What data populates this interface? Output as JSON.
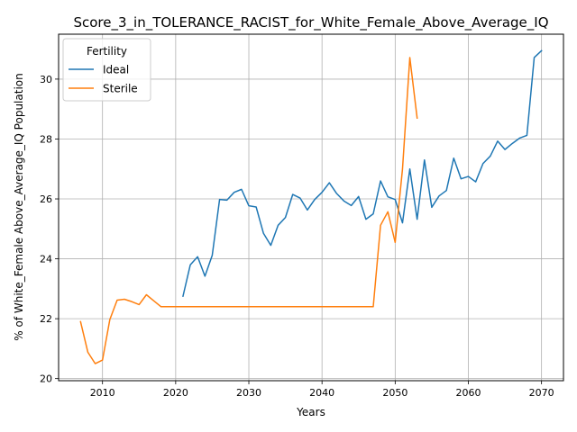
{
  "chart_data": {
    "type": "line",
    "title": "Score_3_in_TOLERANCE_RACIST_for_White_Female_Above_Average_IQ",
    "xlabel": "Years",
    "ylabel": "% of White_Female Above_Average_IQ Population",
    "xlim": [
      2004,
      2073
    ],
    "ylim": [
      19.93,
      31.5
    ],
    "xticks": [
      2010,
      2020,
      2030,
      2040,
      2050,
      2060,
      2070
    ],
    "yticks": [
      20,
      22,
      24,
      26,
      28,
      30
    ],
    "grid": true,
    "legend": {
      "title": "Fertility",
      "position": "upper-left"
    },
    "series": [
      {
        "name": "Ideal",
        "color": "#1f77b4",
        "x": [
          2021,
          2022,
          2023,
          2024,
          2025,
          2026,
          2027,
          2028,
          2029,
          2030,
          2031,
          2032,
          2033,
          2034,
          2035,
          2036,
          2037,
          2038,
          2039,
          2040,
          2041,
          2042,
          2043,
          2044,
          2045,
          2046,
          2047,
          2048,
          2049,
          2050,
          2051,
          2052,
          2053,
          2054,
          2055,
          2056,
          2057,
          2058,
          2059,
          2060,
          2061,
          2062,
          2063,
          2064,
          2065,
          2066,
          2067,
          2068,
          2069,
          2070
        ],
        "y": [
          22.75,
          23.8,
          24.07,
          23.42,
          24.12,
          25.98,
          25.96,
          26.22,
          26.32,
          25.77,
          25.73,
          24.85,
          24.45,
          25.12,
          25.38,
          26.15,
          26.03,
          25.63,
          25.98,
          26.22,
          26.54,
          26.18,
          25.93,
          25.78,
          26.08,
          25.32,
          25.5,
          26.6,
          26.07,
          25.98,
          25.2,
          27.0,
          25.32,
          27.3,
          25.72,
          26.1,
          26.28,
          27.36,
          26.67,
          26.75,
          26.57,
          27.18,
          27.43,
          27.93,
          27.65,
          27.85,
          28.03,
          28.12,
          30.72,
          30.95
        ]
      },
      {
        "name": "Sterile",
        "color": "#ff7f0e",
        "x": [
          2007,
          2008,
          2009,
          2010,
          2011,
          2012,
          2013,
          2014,
          2015,
          2016,
          2017,
          2018,
          2019,
          2020,
          2021,
          2022,
          2023,
          2024,
          2025,
          2026,
          2027,
          2028,
          2029,
          2030,
          2031,
          2032,
          2033,
          2034,
          2035,
          2036,
          2037,
          2038,
          2039,
          2040,
          2041,
          2042,
          2043,
          2044,
          2045,
          2046,
          2047,
          2048,
          2049,
          2050,
          2051,
          2052,
          2053
        ],
        "y": [
          21.9,
          20.88,
          20.5,
          20.62,
          21.97,
          22.62,
          22.65,
          22.57,
          22.47,
          22.8,
          22.6,
          22.4,
          22.4,
          22.4,
          22.4,
          22.4,
          22.4,
          22.4,
          22.4,
          22.4,
          22.4,
          22.4,
          22.4,
          22.4,
          22.4,
          22.4,
          22.4,
          22.4,
          22.4,
          22.4,
          22.4,
          22.4,
          22.4,
          22.4,
          22.4,
          22.4,
          22.4,
          22.4,
          22.4,
          22.4,
          22.4,
          25.12,
          25.57,
          24.55,
          27.0,
          30.72,
          28.7
        ]
      }
    ]
  }
}
